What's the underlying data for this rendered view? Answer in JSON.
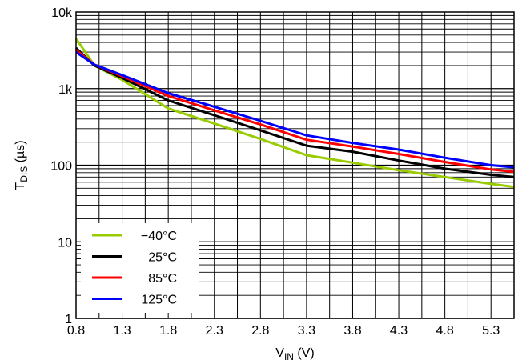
{
  "chart_data": {
    "type": "line",
    "xlabel": {
      "main": "V",
      "sub": "IN",
      "unit": " (V)"
    },
    "ylabel": {
      "main": "T",
      "sub": "DIS",
      "unit": " (µs)"
    },
    "xlim": [
      0.8,
      5.55
    ],
    "ylim": [
      1,
      10000
    ],
    "yscale": "log",
    "grid": true,
    "legend_position": "bottom-left",
    "x_ticks": [
      0.8,
      1.3,
      1.8,
      2.3,
      2.8,
      3.3,
      3.8,
      4.3,
      4.8,
      5.3
    ],
    "x_tick_labels": [
      "0.8",
      "1.3",
      "1.8",
      "2.3",
      "2.8",
      "3.3",
      "3.8",
      "4.3",
      "4.8",
      "5.3"
    ],
    "y_ticks": [
      1,
      10,
      100,
      1000,
      10000
    ],
    "y_tick_labels": [
      "1",
      "10",
      "100",
      "1k",
      "10k"
    ],
    "series": [
      {
        "name": "−40°C",
        "color": "#99cc00",
        "x": [
          0.8,
          1.0,
          1.3,
          1.8,
          2.3,
          2.8,
          3.3,
          3.8,
          4.3,
          4.8,
          5.3,
          5.55
        ],
        "y": [
          4500,
          2000,
          1300,
          550,
          350,
          220,
          135,
          108,
          86,
          70,
          57,
          52
        ]
      },
      {
        "name": "25°C",
        "color": "#000000",
        "x": [
          0.8,
          1.0,
          1.3,
          1.8,
          2.3,
          2.8,
          3.3,
          3.8,
          4.3,
          4.8,
          5.3,
          5.55
        ],
        "y": [
          3400,
          2000,
          1380,
          700,
          450,
          285,
          180,
          150,
          115,
          90,
          75,
          70
        ]
      },
      {
        "name": "85°C",
        "color": "#ff0000",
        "x": [
          0.8,
          1.0,
          1.3,
          1.8,
          2.3,
          2.8,
          3.3,
          3.8,
          4.3,
          4.8,
          5.3,
          5.55
        ],
        "y": [
          3200,
          2050,
          1450,
          800,
          520,
          340,
          215,
          175,
          140,
          110,
          88,
          82
        ]
      },
      {
        "name": "125°C",
        "color": "#0000ff",
        "x": [
          0.8,
          1.0,
          1.3,
          1.8,
          2.3,
          2.8,
          3.3,
          3.8,
          4.3,
          4.8,
          5.3,
          5.55
        ],
        "y": [
          3000,
          2050,
          1500,
          870,
          580,
          380,
          245,
          195,
          160,
          125,
          100,
          94
        ]
      }
    ]
  }
}
